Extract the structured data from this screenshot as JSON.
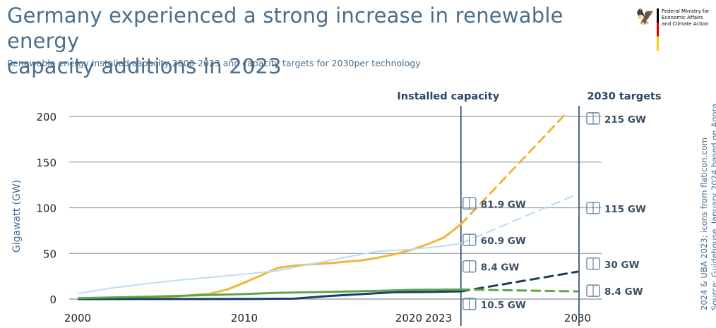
{
  "header": {
    "title_line1": "Germany experienced a strong increase in renewable energy",
    "title_line2": "capacity additions in 2023",
    "subtitle": "Renewable energy installed capacity 2000-2023 and capacity targets for 2030per technology"
  },
  "logo": {
    "text": "Federal Ministry for Economic Affairs and Climate Action",
    "icon": "federal-eagle-icon"
  },
  "source_note": {
    "line1": "2024 & UBA 2023; icons from flaticon.com",
    "line2": "Source: Guidehouse, January 2024 based on Agora"
  },
  "colors": {
    "solar": "#f0b53c",
    "onshore": "#bfdcf2",
    "offshore": "#1f3b66",
    "biomass": "#5ba84a",
    "axis_text": "#4a6e8c",
    "grid": "#9aa3ad",
    "divider": "#2a4566"
  },
  "chart_data": {
    "type": "line",
    "ylabel": "Gigawatt (GW)",
    "ylim": [
      0,
      200
    ],
    "yticks": [
      0,
      50,
      100,
      150,
      200
    ],
    "xlim": [
      2000,
      2030
    ],
    "xtick_labels": [
      {
        "x": 2000,
        "label": "2000"
      },
      {
        "x": 2010,
        "label": "2010"
      },
      {
        "x": 2020,
        "label": "2020"
      },
      {
        "x": 2023,
        "label": "2023"
      },
      {
        "x": 2030,
        "label": "2030"
      }
    ],
    "section_headers": [
      {
        "x": 2023,
        "label": "Installed capacity"
      },
      {
        "x": 2030,
        "label": "2030 targets"
      }
    ],
    "grid": true,
    "series": [
      {
        "key": "solar",
        "icon": "solar-panel-icon",
        "x": [
          2000,
          2002,
          2004,
          2006,
          2008,
          2009,
          2010,
          2011,
          2012,
          2013,
          2014,
          2015,
          2016,
          2017,
          2018,
          2019,
          2020,
          2021,
          2022,
          2023
        ],
        "values": [
          0.1,
          0.3,
          1.1,
          2.9,
          6.1,
          10.6,
          18,
          25.9,
          34.1,
          36.7,
          37.9,
          39.2,
          40.7,
          42.3,
          45.2,
          49,
          53.7,
          60.1,
          67.5,
          81.9
        ],
        "installed_label": "81.9 GW",
        "target": 215,
        "target_label": "215 GW"
      },
      {
        "key": "onshore",
        "icon": "wind-turbine-icon",
        "x": [
          2000,
          2002,
          2004,
          2006,
          2008,
          2010,
          2012,
          2014,
          2016,
          2018,
          2020,
          2022,
          2023
        ],
        "values": [
          6.1,
          12,
          16.6,
          20.6,
          23.9,
          27.2,
          31,
          38.2,
          45.5,
          52.3,
          54.4,
          58.1,
          60.9
        ],
        "installed_label": "60.9 GW",
        "target": 115,
        "target_label": "115 GW"
      },
      {
        "key": "offshore",
        "icon": "offshore-wind-icon",
        "x": [
          2000,
          2009,
          2011,
          2013,
          2015,
          2017,
          2019,
          2021,
          2023
        ],
        "values": [
          0,
          0.1,
          0.2,
          0.5,
          3.3,
          5.4,
          7.5,
          7.8,
          8.4
        ],
        "installed_label": "8.4 GW",
        "target": 30,
        "target_label": "30 GW"
      },
      {
        "key": "biomass",
        "icon": "biomass-plant-icon",
        "x": [
          2000,
          2004,
          2008,
          2010,
          2012,
          2014,
          2016,
          2018,
          2020,
          2023
        ],
        "values": [
          1.0,
          2.5,
          4.5,
          5.5,
          6.9,
          7.5,
          8.2,
          9.0,
          10.0,
          10.5
        ],
        "installed_label": "10.5 GW",
        "target": 8.4,
        "target_label": "8.4 GW"
      }
    ]
  }
}
